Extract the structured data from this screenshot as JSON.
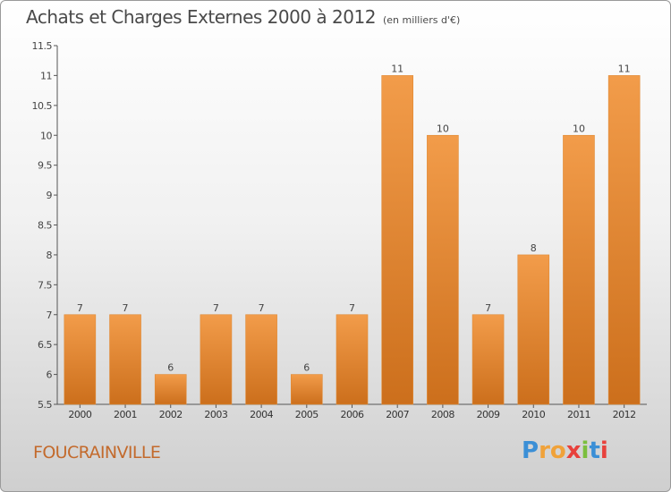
{
  "chart_data": {
    "type": "bar",
    "title": "Achats et Charges Externes 2000 à 2012",
    "subtitle": "(en milliers d'€)",
    "categories": [
      "2000",
      "2001",
      "2002",
      "2003",
      "2004",
      "2005",
      "2006",
      "2007",
      "2008",
      "2009",
      "2010",
      "2011",
      "2012"
    ],
    "values": [
      7,
      7,
      6,
      7,
      7,
      6,
      7,
      11,
      10,
      7,
      8,
      10,
      11
    ],
    "ylim": [
      5.5,
      11.5
    ],
    "yticks": [
      "5.5",
      "6",
      "6.5",
      "7",
      "7.5",
      "8",
      "8.5",
      "9",
      "9.5",
      "10",
      "10.5",
      "11",
      "11.5"
    ],
    "xlabel": "",
    "ylabel": "",
    "grid": false,
    "bar_color": "#f29c4a",
    "bar_color_dark": "#cc6f1c"
  },
  "place": "FOUCRAINVILLE",
  "logo": {
    "letters": [
      "P",
      "r",
      "o",
      "x",
      "i",
      "t",
      "i"
    ],
    "colors": [
      "#3b8fd6",
      "#f0a23a",
      "#f0a23a",
      "#e8413c",
      "#7bbf3d",
      "#3b8fd6",
      "#e8413c"
    ]
  }
}
